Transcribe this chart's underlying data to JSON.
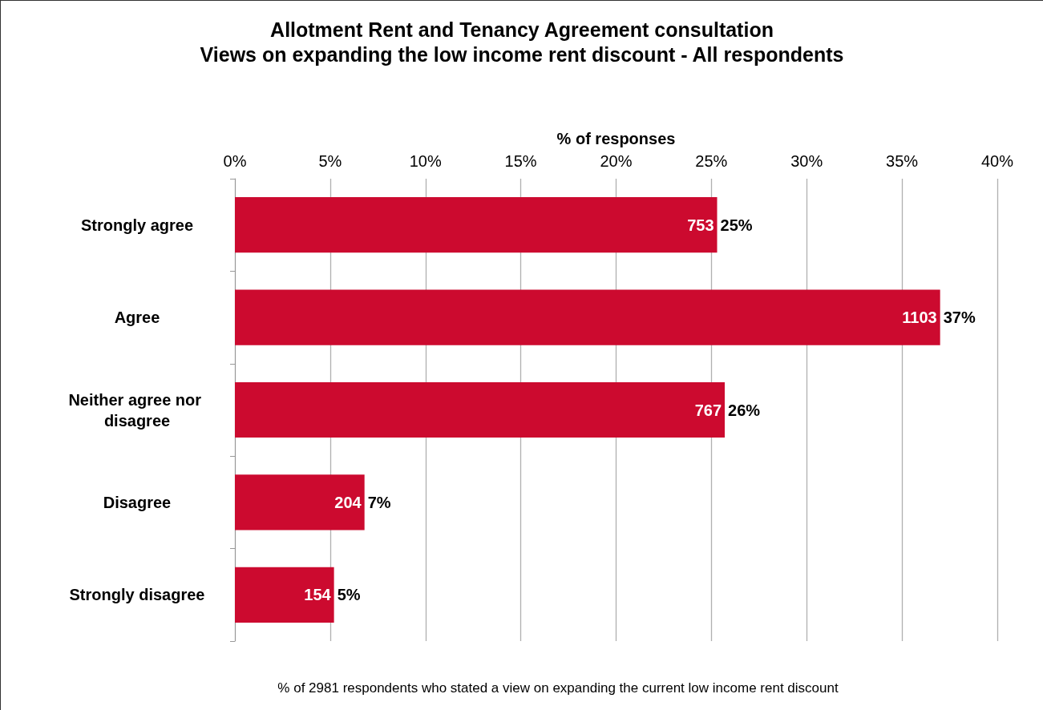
{
  "chart_data": {
    "type": "bar",
    "orientation": "horizontal",
    "title": "Allotment Rent and Tenancy Agreement consultation",
    "subtitle": "Views on expanding the low income rent discount - All respondents",
    "xlabel": "% of responses",
    "categories": [
      "Strongly agree",
      "Agree",
      "Neither agree nor disagree",
      "Disagree",
      "Strongly disagree"
    ],
    "values": [
      25.3,
      37.0,
      25.7,
      6.8,
      5.2
    ],
    "value_labels": [
      "25%",
      "37%",
      "26%",
      "7%",
      "5%"
    ],
    "color": "#cc0a2f",
    "xlim": [
      0,
      40
    ],
    "xticks": [
      {
        "value": 0,
        "label": "0%"
      },
      {
        "value": 5,
        "label": "5%"
      },
      {
        "value": 10,
        "label": "10%"
      },
      {
        "value": 15,
        "label": "15%"
      },
      {
        "value": 20,
        "label": "20%"
      },
      {
        "value": 25,
        "label": "25%"
      },
      {
        "value": 30,
        "label": "30%"
      },
      {
        "value": 35,
        "label": "35%"
      },
      {
        "value": 40,
        "label": "40%"
      }
    ],
    "grid": "x",
    "annotations": [
      {
        "text": "753",
        "x": 25.3,
        "y": "Strongly agree"
      },
      {
        "text": "1103",
        "x": 37.0,
        "y": "Agree"
      },
      {
        "text": "767",
        "x": 25.7,
        "y": "Neither agree nor disagree"
      },
      {
        "text": "204",
        "x": 6.8,
        "y": "Disagree"
      },
      {
        "text": "154",
        "x": 5.2,
        "y": "Strongly disagree"
      },
      "% of 2981 respondents who stated a view on expanding the current low income rent discount"
    ]
  }
}
